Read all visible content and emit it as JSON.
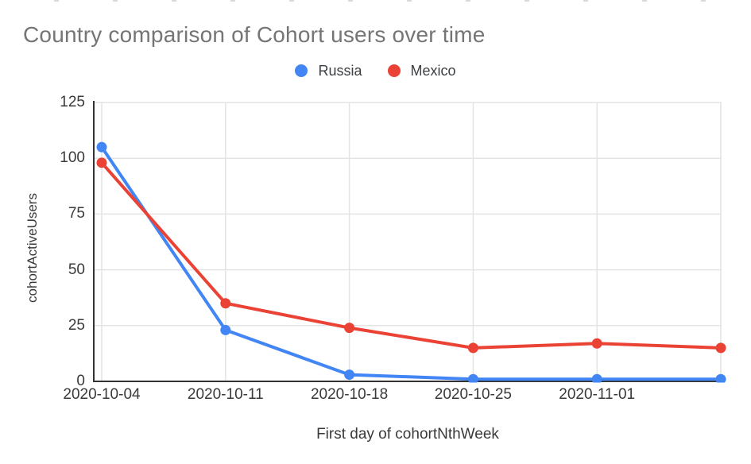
{
  "chart_data": {
    "type": "line",
    "title": "Country comparison of Cohort users over time",
    "xlabel": "First day of cohortNthWeek",
    "ylabel": "cohortActiveUsers",
    "categories": [
      "2020-10-04",
      "2020-10-11",
      "2020-10-18",
      "2020-10-25",
      "2020-11-01",
      ""
    ],
    "series": [
      {
        "name": "Russia",
        "color": "#4285F4",
        "values": [
          105,
          23,
          3,
          1,
          1,
          1
        ]
      },
      {
        "name": "Mexico",
        "color": "#EA4335",
        "values": [
          98,
          35,
          24,
          15,
          17,
          15
        ]
      }
    ],
    "ylim": [
      0,
      125
    ],
    "y_ticks": [
      0,
      25,
      50,
      75,
      100,
      125
    ],
    "grid": true,
    "legend_position": "top",
    "style": {
      "background": "#ffffff",
      "title_color": "#757575",
      "axis_line_color": "#333333",
      "grid_color": "#e4e4e4",
      "tick_label_color": "#3a3a3a",
      "axis_title_color": "#3a3a3a",
      "legend_text_color": "#3c4043"
    }
  }
}
